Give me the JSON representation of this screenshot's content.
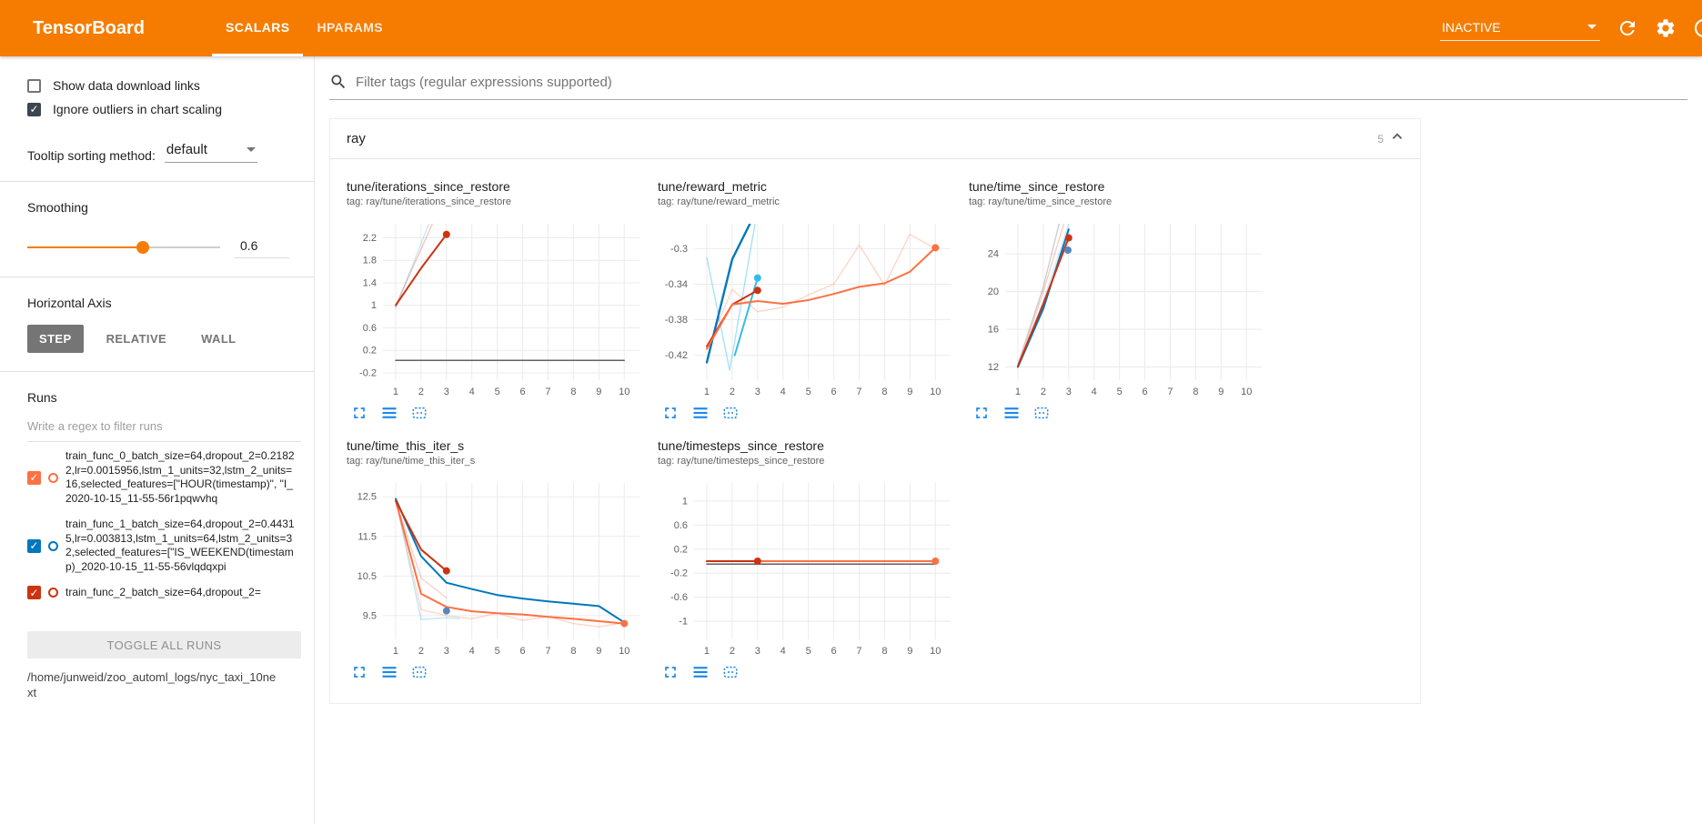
{
  "header": {
    "title": "TensorBoard",
    "tabs": [
      {
        "label": "SCALARS"
      },
      {
        "label": "HPARAMS"
      }
    ],
    "active_tab": "SCALARS",
    "status_label": "INACTIVE",
    "icons": [
      "chevron-down-icon",
      "refresh-icon",
      "settings-gear-icon",
      "help-icon"
    ],
    "bar_color": "#f57c00"
  },
  "sidebar": {
    "checkboxes": [
      {
        "label": "Show data download links",
        "checked": false
      },
      {
        "label": "Ignore outliers in chart scaling",
        "checked": true
      }
    ],
    "tooltip_sorting": {
      "label": "Tooltip sorting method:",
      "value": "default"
    },
    "smoothing": {
      "label": "Smoothing",
      "value": "0.6",
      "percent": 60
    },
    "horizontal_axis": {
      "label": "Horizontal Axis",
      "options": [
        "STEP",
        "RELATIVE",
        "WALL"
      ],
      "selected": "STEP"
    },
    "runs": {
      "label": "Runs",
      "filter_placeholder": "Write a regex to filter runs",
      "items": [
        {
          "label": "train_func_0_batch_size=64,dropout_2=0.21822,lr=0.0015956,lstm_1_units=32,lstm_2_units=16,selected_features=[\"HOUR(timestamp)\", \"I_2020-10-15_11-55-56r1pqwvhq",
          "checked": true,
          "color": "#ff7043"
        },
        {
          "label": "train_func_1_batch_size=64,dropout_2=0.44315,lr=0.003813,lstm_1_units=64,lstm_2_units=32,selected_features=[\"IS_WEEKEND(timestamp)_2020-10-15_11-55-56vlqdqxpi",
          "checked": true,
          "color": "#0077bb"
        },
        {
          "label": "train_func_2_batch_size=64,dropout_2=",
          "checked": true,
          "color": "#cc3311"
        }
      ],
      "toggle_all_label": "TOGGLE ALL RUNS",
      "log_dir": "/home/junweid/zoo_automl_logs/nyc_taxi_10next"
    }
  },
  "main": {
    "filter_placeholder": "Filter tags (regular expressions supported)",
    "section": {
      "title": "ray",
      "count": "5"
    }
  },
  "chart_data": [
    {
      "type": "line",
      "title": "tune/iterations_since_restore",
      "subtitle": "tag: ray/tune/iterations_since_restore",
      "xlabel": "step",
      "grid": true,
      "legend": "none",
      "xlim": [
        0.5,
        10.6
      ],
      "ylim": [
        -0.33,
        2.45
      ],
      "xticks": [
        1,
        2,
        3,
        4,
        5,
        6,
        7,
        8,
        9,
        10
      ],
      "yticks": [
        -0.2,
        0.2,
        0.6,
        1,
        1.4,
        1.8,
        2.2
      ],
      "series": [
        {
          "name": "constant-zero-run",
          "color": "#616161",
          "width": 1.5,
          "points": [
            [
              1,
              0.02
            ],
            [
              10,
              0.02
            ]
          ]
        },
        {
          "name": "train_func_0-raw",
          "color": "#cc3311",
          "width": 1.3,
          "opacity": 0.28,
          "points": [
            [
              1,
              1
            ],
            [
              2,
              2
            ],
            [
              3,
              3
            ]
          ]
        },
        {
          "name": "train_func_1-raw",
          "color": "#0077bb",
          "width": 1.3,
          "opacity": 0.2,
          "points": [
            [
              1,
              0.95
            ],
            [
              2,
              2.1
            ],
            [
              2.8,
              3
            ]
          ]
        },
        {
          "name": "train_func_0-smoothed",
          "color": "#cc3311",
          "width": 2,
          "points": [
            [
              1,
              1
            ],
            [
              2,
              1.66
            ],
            [
              3,
              2.26
            ]
          ]
        }
      ],
      "markers": [
        {
          "x": 3,
          "y": 2.26,
          "color": "#cc3311"
        }
      ]
    },
    {
      "type": "line",
      "title": "tune/reward_metric",
      "subtitle": "tag: ray/tune/reward_metric",
      "xlabel": "step",
      "grid": true,
      "legend": "none",
      "xlim": [
        0.5,
        10.6
      ],
      "ylim": [
        -0.448,
        -0.272
      ],
      "xticks": [
        1,
        2,
        3,
        4,
        5,
        6,
        7,
        8,
        9,
        10
      ],
      "yticks": [
        -0.42,
        -0.38,
        -0.34,
        -0.3
      ],
      "series": [
        {
          "name": "train_func_0-raw",
          "color": "#ff7043",
          "width": 1.3,
          "opacity": 0.3,
          "points": [
            [
              1,
              -0.413
            ],
            [
              2,
              -0.346
            ],
            [
              3,
              -0.371
            ],
            [
              4,
              -0.366
            ],
            [
              5,
              -0.352
            ],
            [
              6,
              -0.34
            ],
            [
              7,
              -0.296
            ],
            [
              8,
              -0.341
            ],
            [
              9,
              -0.284
            ],
            [
              10,
              -0.3
            ]
          ]
        },
        {
          "name": "train_func_1-raw",
          "color": "#33bbee",
          "width": 1.3,
          "opacity": 0.45,
          "points": [
            [
              1,
              -0.31
            ],
            [
              1.9,
              -0.437
            ],
            [
              2.9,
              -0.272
            ]
          ]
        },
        {
          "name": "train_func_1-smoothed",
          "color": "#0077bb",
          "width": 2.4,
          "points": [
            [
              1,
              -0.428
            ],
            [
              2,
              -0.312
            ],
            [
              2.7,
              -0.272
            ]
          ]
        },
        {
          "name": "aux-cyan-smoothed",
          "color": "#33bbee",
          "width": 2,
          "points": [
            [
              2.1,
              -0.42
            ],
            [
              3,
              -0.333
            ]
          ]
        },
        {
          "name": "train_func_2-smoothed",
          "color": "#cc3311",
          "width": 2,
          "points": [
            [
              1,
              -0.41
            ],
            [
              2,
              -0.363
            ],
            [
              3,
              -0.347
            ]
          ]
        },
        {
          "name": "train_func_0-smoothed",
          "color": "#ff7043",
          "width": 2,
          "points": [
            [
              1,
              -0.413
            ],
            [
              2,
              -0.363
            ],
            [
              3,
              -0.359
            ],
            [
              4,
              -0.362
            ],
            [
              5,
              -0.358
            ],
            [
              6,
              -0.351
            ],
            [
              7,
              -0.343
            ],
            [
              8,
              -0.339
            ],
            [
              9,
              -0.326
            ],
            [
              10,
              -0.299
            ]
          ]
        }
      ],
      "markers": [
        {
          "x": 3,
          "y": -0.333,
          "color": "#33bbee"
        },
        {
          "x": 3,
          "y": -0.347,
          "color": "#cc3311"
        },
        {
          "x": 10,
          "y": -0.299,
          "color": "#ff7043"
        }
      ]
    },
    {
      "type": "line",
      "title": "tune/time_since_restore",
      "subtitle": "tag: ray/tune/time_since_restore",
      "xlabel": "step",
      "grid": true,
      "legend": "none",
      "xlim": [
        0.5,
        10.6
      ],
      "ylim": [
        10.6,
        27.2
      ],
      "xticks": [
        1,
        2,
        3,
        4,
        5,
        6,
        7,
        8,
        9,
        10
      ],
      "yticks": [
        12,
        16,
        20,
        24
      ],
      "series": [
        {
          "name": "train_func_2-raw",
          "color": "#cc3311",
          "width": 1.3,
          "opacity": 0.25,
          "points": [
            [
              1,
              12
            ],
            [
              2,
              20
            ],
            [
              2.9,
              28
            ]
          ]
        },
        {
          "name": "train_func_1-raw",
          "color": "#0077bb",
          "width": 1.3,
          "opacity": 0.18,
          "points": [
            [
              1,
              12
            ],
            [
              2,
              19
            ],
            [
              3.1,
              28
            ]
          ]
        },
        {
          "name": "gray-raw",
          "color": "#999999",
          "width": 1.3,
          "opacity": 0.5,
          "points": [
            [
              1,
              12.3
            ],
            [
              2,
              20.5
            ],
            [
              2.7,
              28
            ]
          ]
        },
        {
          "name": "train_func_1-smoothed",
          "color": "#0077bb",
          "width": 2,
          "points": [
            [
              1,
              12
            ],
            [
              2,
              18.2
            ],
            [
              3,
              26.6
            ]
          ]
        },
        {
          "name": "train_func_2-smoothed",
          "color": "#cc3311",
          "width": 2,
          "points": [
            [
              1,
              12.1
            ],
            [
              2,
              18.7
            ],
            [
              3,
              25.7
            ]
          ]
        }
      ],
      "markers": [
        {
          "x": 3,
          "y": 25.7,
          "color": "#cc3311"
        },
        {
          "x": 2.97,
          "y": 24.4,
          "color": "#5588bb"
        }
      ]
    },
    {
      "type": "line",
      "title": "tune/time_this_iter_s",
      "subtitle": "tag: ray/tune/time_this_iter_s",
      "xlabel": "step",
      "grid": true,
      "legend": "none",
      "xlim": [
        0.5,
        10.6
      ],
      "ylim": [
        8.9,
        12.85
      ],
      "xticks": [
        1,
        2,
        3,
        4,
        5,
        6,
        7,
        8,
        9,
        10
      ],
      "yticks": [
        9.5,
        10.5,
        11.5,
        12.5
      ],
      "series": [
        {
          "name": "train_func_1-raw",
          "color": "#33bbee",
          "width": 1.3,
          "opacity": 0.35,
          "points": [
            [
              1,
              12.45
            ],
            [
              2,
              9.4
            ],
            [
              3,
              9.45
            ],
            [
              3.5,
              9.42
            ]
          ]
        },
        {
          "name": "train_func_0-raw",
          "color": "#ff7043",
          "width": 1.3,
          "opacity": 0.3,
          "points": [
            [
              1,
              12.4
            ],
            [
              2,
              9.65
            ],
            [
              3,
              9.5
            ],
            [
              4,
              9.42
            ],
            [
              5,
              9.56
            ],
            [
              6,
              9.38
            ],
            [
              7,
              9.48
            ],
            [
              8,
              9.3
            ],
            [
              9,
              9.22
            ],
            [
              10,
              9.32
            ]
          ]
        },
        {
          "name": "train_func_2-raw",
          "color": "#cc3311",
          "width": 1.3,
          "opacity": 0.22,
          "points": [
            [
              1,
              12.4
            ],
            [
              2,
              10.45
            ],
            [
              3,
              9.95
            ]
          ]
        },
        {
          "name": "train_func_1-smoothed",
          "color": "#0077bb",
          "width": 2,
          "points": [
            [
              1,
              12.45
            ],
            [
              2,
              11.0
            ],
            [
              3,
              10.33
            ],
            [
              4,
              10.17
            ],
            [
              5,
              10.02
            ],
            [
              6,
              9.93
            ],
            [
              7,
              9.86
            ],
            [
              8,
              9.8
            ],
            [
              9,
              9.74
            ],
            [
              10,
              9.33
            ]
          ]
        },
        {
          "name": "train_func_0-smoothed",
          "color": "#ff7043",
          "width": 2,
          "points": [
            [
              1,
              12.4
            ],
            [
              2,
              10.05
            ],
            [
              3,
              9.72
            ],
            [
              4,
              9.61
            ],
            [
              5,
              9.56
            ],
            [
              6,
              9.53
            ],
            [
              7,
              9.47
            ],
            [
              8,
              9.42
            ],
            [
              9,
              9.36
            ],
            [
              10,
              9.3
            ]
          ]
        },
        {
          "name": "train_func_2-smoothed",
          "color": "#cc3311",
          "width": 2,
          "points": [
            [
              1,
              12.4
            ],
            [
              2,
              11.17
            ],
            [
              3,
              10.63
            ]
          ]
        }
      ],
      "markers": [
        {
          "x": 3,
          "y": 10.63,
          "color": "#cc3311"
        },
        {
          "x": 3,
          "y": 9.62,
          "color": "#5588bb"
        },
        {
          "x": 10,
          "y": 9.3,
          "color": "#ff7043"
        }
      ]
    },
    {
      "type": "line",
      "title": "tune/timesteps_since_restore",
      "subtitle": "tag: ray/tune/timesteps_since_restore",
      "xlabel": "step",
      "grid": true,
      "legend": "none",
      "xlim": [
        0.5,
        10.6
      ],
      "ylim": [
        -1.3,
        1.3
      ],
      "xticks": [
        1,
        2,
        3,
        4,
        5,
        6,
        7,
        8,
        9,
        10
      ],
      "yticks": [
        -1,
        -0.6,
        -0.2,
        0.2,
        0.6,
        1
      ],
      "series": [
        {
          "name": "constant-zero-run",
          "color": "#616161",
          "width": 1.5,
          "points": [
            [
              1,
              -0.05
            ],
            [
              10,
              -0.05
            ]
          ]
        },
        {
          "name": "train_func_0-smoothed",
          "color": "#ff7043",
          "width": 2,
          "points": [
            [
              1,
              0
            ],
            [
              10,
              0
            ]
          ]
        },
        {
          "name": "train_func_2-smoothed",
          "color": "#cc3311",
          "width": 2,
          "points": [
            [
              1,
              0
            ],
            [
              3,
              0
            ]
          ]
        }
      ],
      "markers": [
        {
          "x": 3,
          "y": 0,
          "color": "#cc3311"
        },
        {
          "x": 10,
          "y": 0,
          "color": "#ff7043"
        }
      ]
    }
  ]
}
